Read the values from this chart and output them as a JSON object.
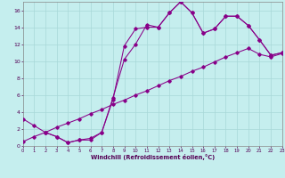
{
  "xlabel": "Windchill (Refroidissement éolien,°C)",
  "xlim": [
    0,
    23
  ],
  "ylim": [
    0,
    17
  ],
  "xticks": [
    0,
    1,
    2,
    3,
    4,
    5,
    6,
    7,
    8,
    9,
    10,
    11,
    12,
    13,
    14,
    15,
    16,
    17,
    18,
    19,
    20,
    21,
    22,
    23
  ],
  "yticks": [
    0,
    2,
    4,
    6,
    8,
    10,
    12,
    14,
    16
  ],
  "background_color": "#c5eeee",
  "grid_color": "#a8d8d8",
  "line_color": "#880088",
  "curve1_x": [
    0,
    1,
    2,
    3,
    4,
    5,
    6,
    7,
    8,
    9,
    10,
    11,
    12,
    13,
    14,
    15,
    16,
    17,
    18,
    19,
    20,
    21,
    22,
    23
  ],
  "curve1_y": [
    3.2,
    2.4,
    1.6,
    1.1,
    0.4,
    0.7,
    0.7,
    1.6,
    5.7,
    10.2,
    12.0,
    14.3,
    14.0,
    15.7,
    17.0,
    15.7,
    13.3,
    13.8,
    15.3,
    15.3,
    14.2,
    12.5,
    10.7,
    11.0
  ],
  "curve2_x": [
    2,
    3,
    4,
    5,
    6,
    7,
    8,
    9,
    10,
    11,
    12,
    13,
    14,
    15,
    16,
    17,
    18,
    19,
    20,
    21,
    22,
    23
  ],
  "curve2_y": [
    1.6,
    1.1,
    0.4,
    0.7,
    0.9,
    1.6,
    5.5,
    11.8,
    13.8,
    14.0,
    14.0,
    15.7,
    17.0,
    15.7,
    13.3,
    13.8,
    15.3,
    15.3,
    14.2,
    12.5,
    10.7,
    11.0
  ],
  "curve3_x": [
    0,
    1,
    2,
    3,
    4,
    5,
    6,
    7,
    8,
    9,
    10,
    11,
    12,
    13,
    14,
    15,
    16,
    17,
    18,
    19,
    20,
    21,
    22,
    23
  ],
  "curve3_y": [
    0.5,
    1.1,
    1.6,
    2.2,
    2.7,
    3.2,
    3.8,
    4.3,
    4.9,
    5.4,
    6.0,
    6.5,
    7.1,
    7.7,
    8.2,
    8.8,
    9.3,
    9.9,
    10.5,
    11.0,
    11.5,
    10.8,
    10.5,
    10.9
  ]
}
